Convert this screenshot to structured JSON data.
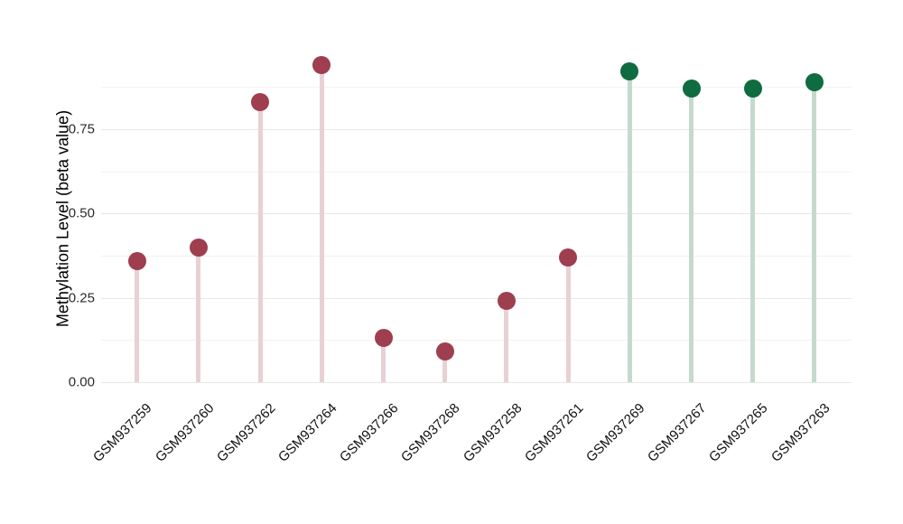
{
  "chart_data": {
    "type": "scatter",
    "variant": "lollipop",
    "title": "",
    "xlabel": "",
    "ylabel": "Methylation Level (beta value)",
    "ylim": [
      0,
      0.985
    ],
    "grid": "on",
    "legend": "none",
    "yticks": [
      {
        "value": 0.0,
        "label": "0.00"
      },
      {
        "value": 0.25,
        "label": "0.25"
      },
      {
        "value": 0.5,
        "label": "0.50"
      },
      {
        "value": 0.75,
        "label": "0.75"
      }
    ],
    "minor_gridlines": [
      0.125,
      0.375,
      0.625,
      0.875
    ],
    "categories": [
      "GSM937259",
      "GSM937260",
      "GSM937262",
      "GSM937264",
      "GSM937266",
      "GSM937268",
      "GSM937258",
      "GSM937261",
      "GSM937269",
      "GSM937267",
      "GSM937265",
      "GSM937263"
    ],
    "points": [
      {
        "sample": "GSM937259",
        "value": 0.36,
        "group": "maroon"
      },
      {
        "sample": "GSM937260",
        "value": 0.4,
        "group": "maroon"
      },
      {
        "sample": "GSM937262",
        "value": 0.83,
        "group": "maroon"
      },
      {
        "sample": "GSM937264",
        "value": 0.94,
        "group": "maroon"
      },
      {
        "sample": "GSM937266",
        "value": 0.13,
        "group": "maroon"
      },
      {
        "sample": "GSM937268",
        "value": 0.09,
        "group": "maroon"
      },
      {
        "sample": "GSM937258",
        "value": 0.24,
        "group": "maroon"
      },
      {
        "sample": "GSM937261",
        "value": 0.37,
        "group": "maroon"
      },
      {
        "sample": "GSM937269",
        "value": 0.92,
        "group": "green"
      },
      {
        "sample": "GSM937267",
        "value": 0.87,
        "group": "green"
      },
      {
        "sample": "GSM937265",
        "value": 0.87,
        "group": "green"
      },
      {
        "sample": "GSM937263",
        "value": 0.89,
        "group": "green"
      }
    ],
    "colors": {
      "maroon_dot": "#9e3e4e",
      "maroon_stem": "#e9d0d5",
      "green_dot": "#0f6b40",
      "green_stem": "#c4dacd",
      "gridline_major": "#e7e7e7",
      "gridline_minor": "#f2f2f2",
      "tick_text": "#2b2b2b",
      "axis_title_text": "#000000"
    }
  }
}
